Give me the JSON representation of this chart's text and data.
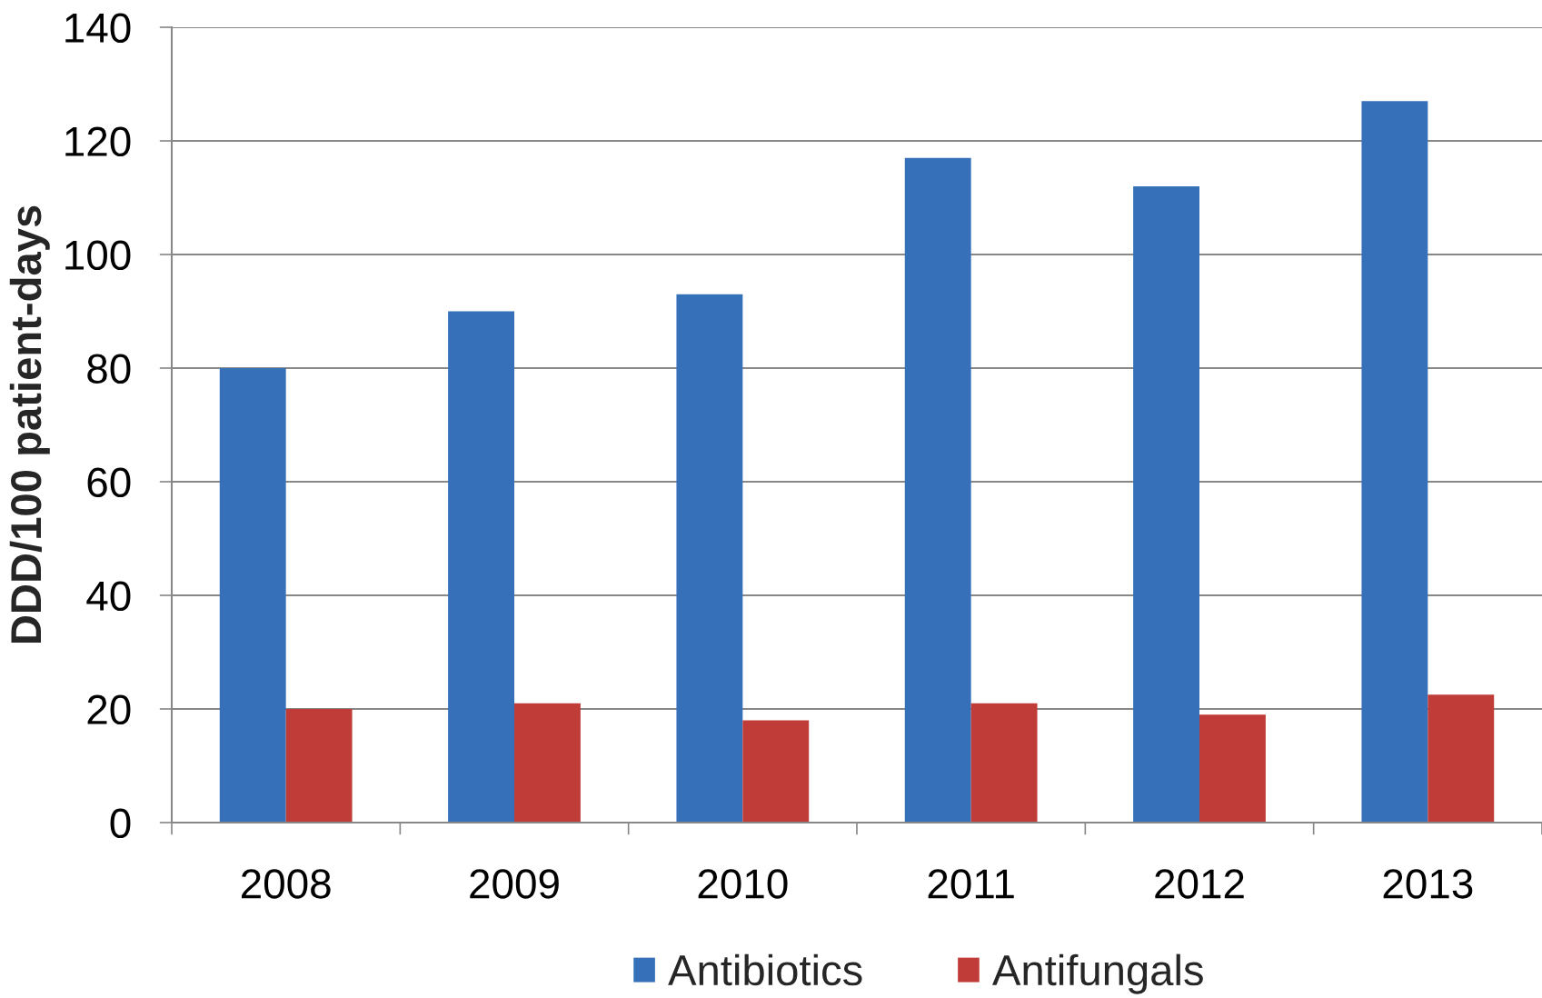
{
  "chart_data": {
    "type": "bar",
    "categories": [
      "2008",
      "2009",
      "2010",
      "2011",
      "2012",
      "2013"
    ],
    "series": [
      {
        "name": "Antibiotics",
        "color": "#3570b8",
        "values": [
          80,
          90,
          93,
          117,
          112,
          127
        ]
      },
      {
        "name": "Antifungals",
        "color": "#c03c38",
        "values": [
          20,
          21,
          18,
          21,
          19,
          22.5
        ]
      }
    ],
    "ylabel": "DDD/100 patient-days",
    "ylim": [
      0,
      140
    ],
    "yticks": [
      0,
      20,
      40,
      60,
      80,
      100,
      120,
      140
    ],
    "grid": "y",
    "legend": "bottom"
  }
}
